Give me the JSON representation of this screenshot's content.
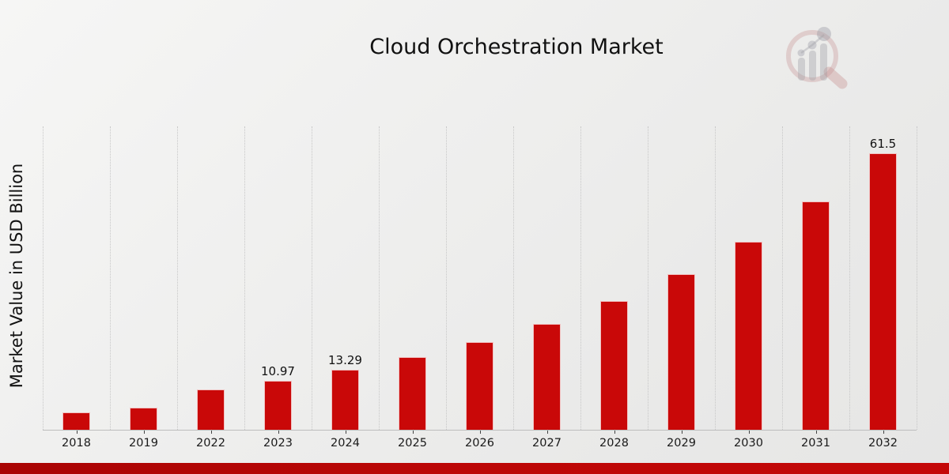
{
  "title": "Cloud Orchestration Market",
  "y_axis_label": "Market Value in USD Billion",
  "watermark_icon": "magnifier-bar-chart-logo",
  "colors": {
    "bar": "#c90808",
    "footer_accent": "#b50606",
    "gridline": "#c7c7c7",
    "background_light": "#f6f6f5",
    "background_dark": "#e6e6e5"
  },
  "chart_data": {
    "type": "bar",
    "title": "Cloud Orchestration Market",
    "xlabel": "",
    "ylabel": "Market Value in USD Billion",
    "categories": [
      "2018",
      "2019",
      "2022",
      "2023",
      "2024",
      "2025",
      "2026",
      "2027",
      "2028",
      "2029",
      "2030",
      "2031",
      "2032"
    ],
    "values": [
      3.95,
      4.88,
      9.0,
      10.97,
      13.29,
      16.1,
      19.5,
      23.6,
      28.6,
      34.7,
      41.9,
      50.8,
      61.5
    ],
    "bar_value_labels": [
      "",
      "",
      "",
      "10.97",
      "13.29",
      "",
      "",
      "",
      "",
      "",
      "",
      "",
      "61.5"
    ],
    "ylim": [
      0,
      67.5
    ],
    "grid": "vertical-dotted",
    "legend": "none",
    "bar_color": "#c90808"
  }
}
